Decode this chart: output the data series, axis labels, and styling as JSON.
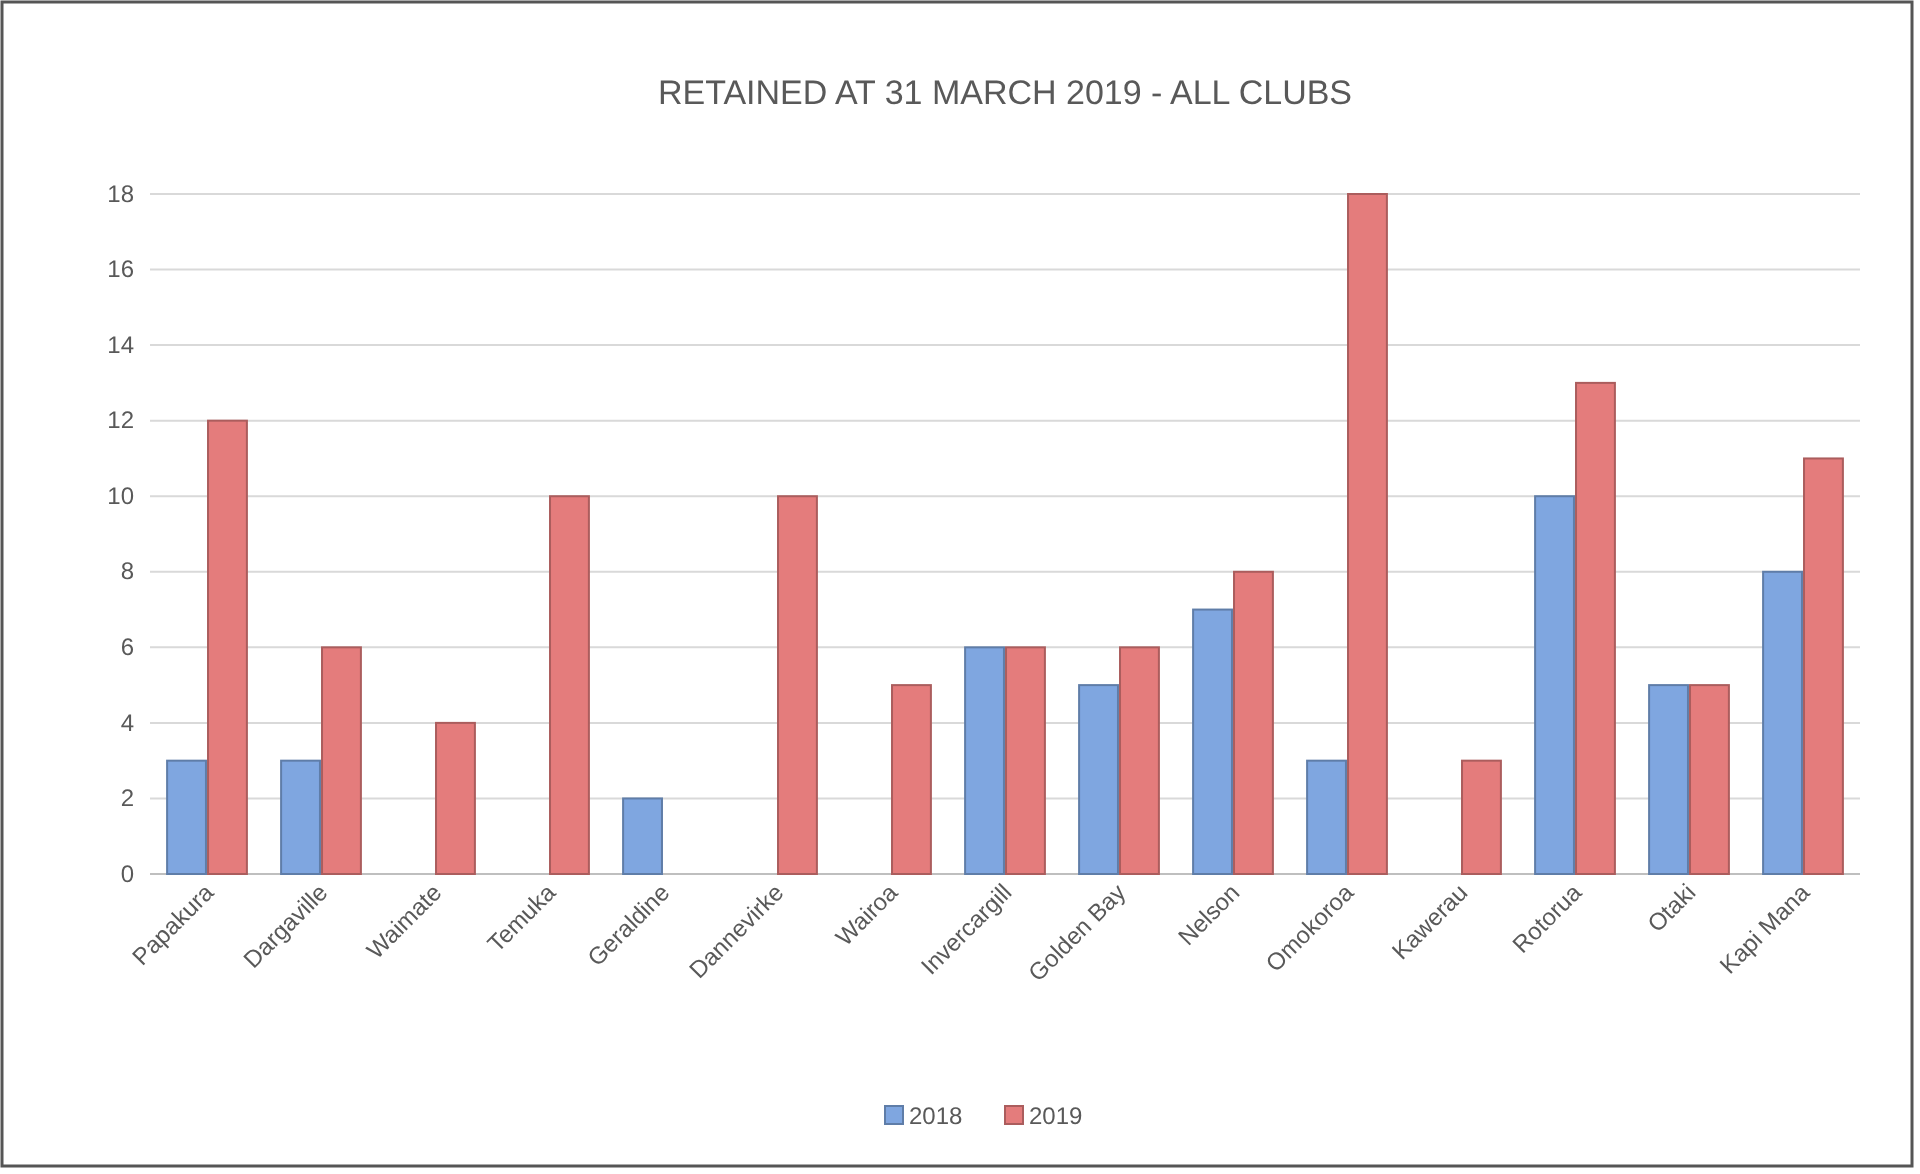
{
  "chart_data": {
    "type": "bar",
    "title": "RETAINED AT 31 MARCH 2019 - ALL CLUBS",
    "categories": [
      "Papakura",
      "Dargaville",
      "Waimate",
      "Temuka",
      "Geraldine",
      "Dannevirke",
      "Wairoa",
      "Invercargill",
      "Golden Bay",
      "Nelson",
      "Omokoroa",
      "Kawerau",
      "Rotorua",
      "Otaki",
      "Kapi Mana"
    ],
    "series": [
      {
        "name": "2018",
        "color": "#7fa6e0",
        "values": [
          3,
          3,
          0,
          0,
          2,
          0,
          0,
          6,
          5,
          7,
          3,
          0,
          10,
          5,
          8
        ]
      },
      {
        "name": "2019",
        "color": "#e47c7c",
        "values": [
          12,
          6,
          4,
          10,
          0,
          10,
          5,
          6,
          6,
          8,
          18,
          3,
          13,
          5,
          11
        ]
      }
    ],
    "ylim": [
      0,
      18
    ],
    "yticks": [
      0,
      2,
      4,
      6,
      8,
      10,
      12,
      14,
      16,
      18
    ],
    "grid": "y",
    "legend": "bottom"
  }
}
